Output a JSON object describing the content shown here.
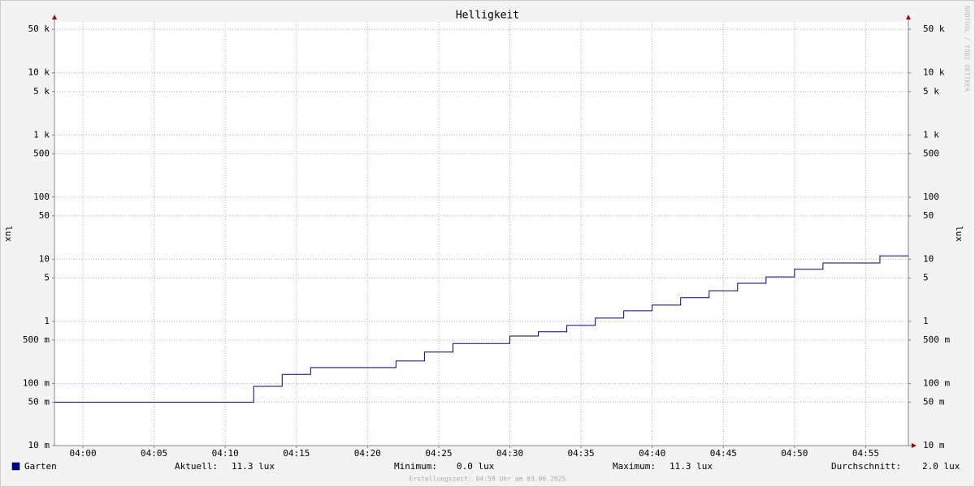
{
  "chart_data": {
    "type": "line",
    "title": "Helligkeit",
    "y_label": "lux",
    "y2_label": "lux",
    "log_scale": true,
    "grid": true,
    "step": true,
    "x": [
      238,
      252,
      254,
      256,
      262,
      264,
      266,
      270,
      272,
      274,
      276,
      278,
      280,
      282,
      284,
      286,
      288,
      290,
      292,
      296
    ],
    "series": [
      {
        "name": "Garten",
        "color": "#00008b",
        "values": [
          0.05,
          0.09,
          0.14,
          0.18,
          0.23,
          0.32,
          0.44,
          0.58,
          0.68,
          0.86,
          1.13,
          1.48,
          1.83,
          2.4,
          3.1,
          4.1,
          5.2,
          6.9,
          8.7,
          11.3
        ]
      }
    ],
    "xlim": [
      238,
      298
    ],
    "xticks": [
      {
        "value": 240,
        "label": "04:00"
      },
      {
        "value": 245,
        "label": "04:05"
      },
      {
        "value": 250,
        "label": "04:10"
      },
      {
        "value": 255,
        "label": "04:15"
      },
      {
        "value": 260,
        "label": "04:20"
      },
      {
        "value": 265,
        "label": "04:25"
      },
      {
        "value": 270,
        "label": "04:30"
      },
      {
        "value": 275,
        "label": "04:35"
      },
      {
        "value": 280,
        "label": "04:40"
      },
      {
        "value": 285,
        "label": "04:45"
      },
      {
        "value": 290,
        "label": "04:50"
      },
      {
        "value": 295,
        "label": "04:55"
      }
    ],
    "ylim": [
      0.01,
      66000
    ],
    "yticks": [
      {
        "value": 0.01,
        "label": "10 m"
      },
      {
        "value": 0.05,
        "label": "50 m"
      },
      {
        "value": 0.1,
        "label": "100 m"
      },
      {
        "value": 0.5,
        "label": "500 m"
      },
      1,
      5,
      10,
      50,
      100,
      500,
      {
        "value": 1000,
        "label": "1 k"
      },
      {
        "value": 5000,
        "label": "5 k"
      },
      {
        "value": 10000,
        "label": "10 k"
      },
      {
        "value": 50000,
        "label": "50 k"
      }
    ],
    "stats": [
      {
        "label": "Aktuell:",
        "value": "11.3 lux"
      },
      {
        "label": "Minimum:",
        "value": "0.0 lux"
      },
      {
        "label": "Maximum:",
        "value": "11.3 lux"
      },
      {
        "label": "Durchschnitt:",
        "value": "2.0 lux"
      }
    ],
    "watermark": "RRDTOOL / TOBI OETIKER",
    "footer": "Erstellungszeit: 04:58 Uhr am 03.06.2025"
  }
}
